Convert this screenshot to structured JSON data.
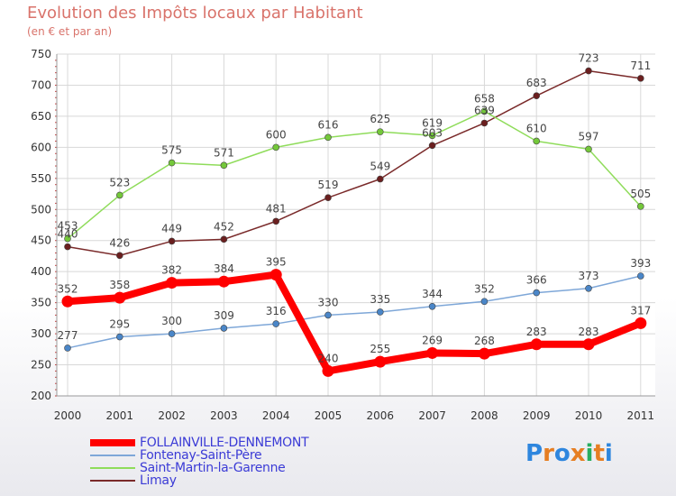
{
  "title": "Evolution des Impôts locaux par Habitant",
  "subtitle": "(en € et par an)",
  "logo": {
    "text": "Proxiti",
    "letters": [
      "P",
      "r",
      "o",
      "x",
      "i",
      "t",
      "i"
    ],
    "colors": [
      "#2e86de",
      "#e67e22",
      "#2e86de",
      "#e67e22",
      "#27ae60",
      "#e67e22",
      "#2e86de"
    ]
  },
  "chart_data": {
    "type": "line",
    "title": "Evolution des Impôts locaux par Habitant",
    "subtitle": "(en € et par an)",
    "xlabel": "",
    "ylabel": "",
    "categories": [
      "2000",
      "2001",
      "2002",
      "2003",
      "2004",
      "2005",
      "2006",
      "2007",
      "2008",
      "2009",
      "2010",
      "2011"
    ],
    "ylim": [
      200,
      750
    ],
    "yticks": [
      200,
      250,
      300,
      350,
      400,
      450,
      500,
      550,
      600,
      650,
      700,
      750
    ],
    "grid": true,
    "legend_position": "bottom-left",
    "series": [
      {
        "name": "FOLLAINVILLE-DENNEMONT",
        "color": "#ff0000",
        "point_color": "#ff0000",
        "emphasis": true,
        "values": [
          352,
          358,
          382,
          384,
          395,
          240,
          255,
          269,
          268,
          283,
          283,
          317
        ]
      },
      {
        "name": "Fontenay-Saint-Père",
        "color": "#7ea7d8",
        "point_color": "#4a86c8",
        "emphasis": false,
        "values": [
          277,
          295,
          300,
          309,
          316,
          330,
          335,
          344,
          352,
          366,
          373,
          393
        ]
      },
      {
        "name": "Saint-Martin-la-Garenne",
        "color": "#8fdc5a",
        "point_color": "#74c83a",
        "emphasis": false,
        "values": [
          453,
          523,
          575,
          571,
          600,
          616,
          625,
          619,
          658,
          610,
          597,
          505
        ]
      },
      {
        "name": "Limay",
        "color": "#7a2a2a",
        "point_color": "#6b1f1f",
        "emphasis": false,
        "values": [
          440,
          426,
          449,
          452,
          481,
          519,
          549,
          603,
          639,
          683,
          723,
          711
        ]
      }
    ]
  }
}
